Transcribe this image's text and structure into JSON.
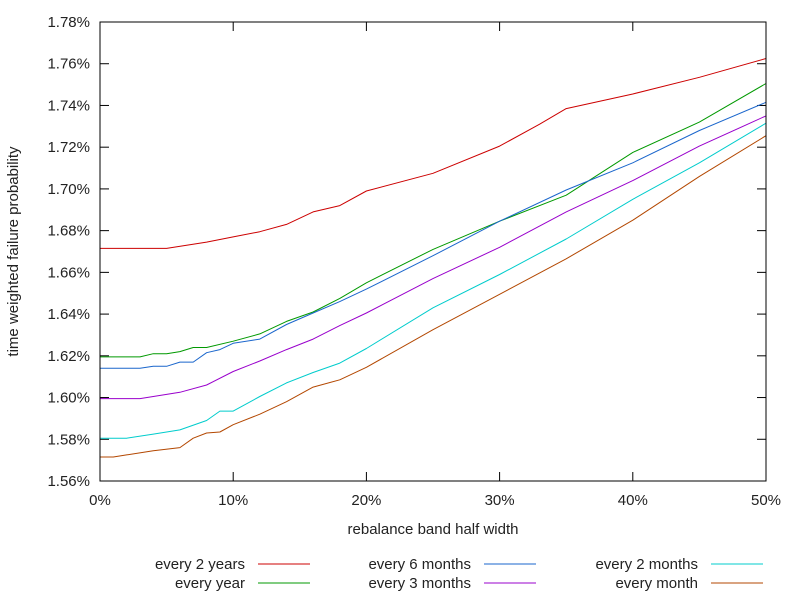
{
  "chart_data": {
    "type": "line",
    "title": "",
    "xlabel": "rebalance band half width",
    "ylabel": "time weighted failure probability",
    "xlim": [
      0,
      50
    ],
    "ylim": [
      1.56,
      1.78
    ],
    "grid": false,
    "legend_position": "bottom",
    "x_ticks": [
      0,
      10,
      20,
      30,
      40,
      50
    ],
    "x_tick_labels": [
      "0%",
      "10%",
      "20%",
      "30%",
      "40%",
      "50%"
    ],
    "y_ticks": [
      1.56,
      1.58,
      1.6,
      1.62,
      1.64,
      1.66,
      1.68,
      1.7,
      1.72,
      1.74,
      1.76,
      1.78
    ],
    "y_tick_labels": [
      "1.56%",
      "1.58%",
      "1.60%",
      "1.62%",
      "1.64%",
      "1.66%",
      "1.68%",
      "1.70%",
      "1.72%",
      "1.74%",
      "1.76%",
      "1.78%"
    ],
    "series": [
      {
        "name": "every 2 years",
        "color": "#cc0000",
        "points": [
          [
            0,
            1.6715
          ],
          [
            3,
            1.6715
          ],
          [
            5,
            1.6715
          ],
          [
            8,
            1.6745
          ],
          [
            10,
            1.677
          ],
          [
            12,
            1.6795
          ],
          [
            14,
            1.683
          ],
          [
            16,
            1.689
          ],
          [
            18,
            1.692
          ],
          [
            20,
            1.699
          ],
          [
            25,
            1.7075
          ],
          [
            30,
            1.7205
          ],
          [
            33,
            1.731
          ],
          [
            35,
            1.7385
          ],
          [
            40,
            1.7455
          ],
          [
            45,
            1.7535
          ],
          [
            50,
            1.7625
          ]
        ]
      },
      {
        "name": "every year",
        "color": "#009900",
        "points": [
          [
            0,
            1.6195
          ],
          [
            3,
            1.6195
          ],
          [
            4,
            1.621
          ],
          [
            5,
            1.621
          ],
          [
            6,
            1.622
          ],
          [
            7,
            1.624
          ],
          [
            8,
            1.624
          ],
          [
            10,
            1.627
          ],
          [
            12,
            1.6305
          ],
          [
            14,
            1.6365
          ],
          [
            16,
            1.641
          ],
          [
            18,
            1.6475
          ],
          [
            20,
            1.655
          ],
          [
            25,
            1.671
          ],
          [
            30,
            1.6845
          ],
          [
            35,
            1.697
          ],
          [
            40,
            1.7175
          ],
          [
            45,
            1.732
          ],
          [
            50,
            1.7505
          ]
        ]
      },
      {
        "name": "every 6 months",
        "color": "#1a66cc",
        "points": [
          [
            0,
            1.614
          ],
          [
            3,
            1.614
          ],
          [
            4,
            1.615
          ],
          [
            5,
            1.615
          ],
          [
            6,
            1.617
          ],
          [
            7,
            1.617
          ],
          [
            8,
            1.6215
          ],
          [
            9,
            1.623
          ],
          [
            10,
            1.626
          ],
          [
            12,
            1.628
          ],
          [
            14,
            1.635
          ],
          [
            16,
            1.6405
          ],
          [
            18,
            1.646
          ],
          [
            20,
            1.652
          ],
          [
            25,
            1.668
          ],
          [
            30,
            1.6845
          ],
          [
            35,
            1.6995
          ],
          [
            40,
            1.7125
          ],
          [
            45,
            1.728
          ],
          [
            50,
            1.7415
          ]
        ]
      },
      {
        "name": "every 3 months",
        "color": "#9900cc",
        "points": [
          [
            0,
            1.5995
          ],
          [
            3,
            1.5995
          ],
          [
            5,
            1.6015
          ],
          [
            6,
            1.6025
          ],
          [
            8,
            1.606
          ],
          [
            10,
            1.6125
          ],
          [
            12,
            1.6175
          ],
          [
            14,
            1.623
          ],
          [
            16,
            1.628
          ],
          [
            18,
            1.6345
          ],
          [
            20,
            1.6405
          ],
          [
            25,
            1.657
          ],
          [
            30,
            1.672
          ],
          [
            35,
            1.689
          ],
          [
            40,
            1.704
          ],
          [
            45,
            1.7205
          ],
          [
            50,
            1.735
          ]
        ]
      },
      {
        "name": "every 2 months",
        "color": "#00cccc",
        "points": [
          [
            0,
            1.5805
          ],
          [
            1,
            1.5805
          ],
          [
            2,
            1.5805
          ],
          [
            4,
            1.5825
          ],
          [
            6,
            1.5845
          ],
          [
            8,
            1.589
          ],
          [
            9,
            1.5935
          ],
          [
            10,
            1.5935
          ],
          [
            12,
            1.6005
          ],
          [
            14,
            1.607
          ],
          [
            16,
            1.612
          ],
          [
            18,
            1.6165
          ],
          [
            20,
            1.6235
          ],
          [
            25,
            1.643
          ],
          [
            30,
            1.659
          ],
          [
            35,
            1.676
          ],
          [
            40,
            1.695
          ],
          [
            45,
            1.7125
          ],
          [
            50,
            1.7315
          ]
        ]
      },
      {
        "name": "every month",
        "color": "#b34700",
        "points": [
          [
            0,
            1.5715
          ],
          [
            1,
            1.5715
          ],
          [
            2,
            1.5725
          ],
          [
            4,
            1.5745
          ],
          [
            6,
            1.576
          ],
          [
            7,
            1.5805
          ],
          [
            8,
            1.583
          ],
          [
            9,
            1.5835
          ],
          [
            10,
            1.587
          ],
          [
            12,
            1.592
          ],
          [
            14,
            1.598
          ],
          [
            16,
            1.605
          ],
          [
            18,
            1.6085
          ],
          [
            20,
            1.6145
          ],
          [
            25,
            1.6325
          ],
          [
            30,
            1.6495
          ],
          [
            35,
            1.6665
          ],
          [
            40,
            1.685
          ],
          [
            45,
            1.706
          ],
          [
            50,
            1.7255
          ]
        ]
      }
    ]
  }
}
